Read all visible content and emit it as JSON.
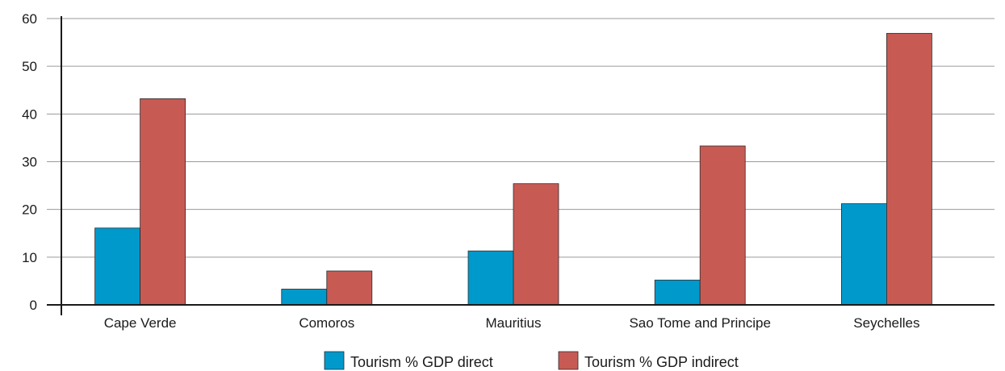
{
  "chart_data": {
    "type": "bar",
    "categories": [
      "Cape Verde",
      "Comoros",
      "Mauritius",
      "Sao Tome and Principe",
      "Seychelles"
    ],
    "series": [
      {
        "name": "Tourism % GDP direct",
        "color": "#0099cc",
        "values": [
          16.1,
          3.3,
          11.3,
          5.2,
          21.2
        ]
      },
      {
        "name": "Tourism % GDP indirect",
        "color": "#c85a54",
        "values": [
          43.2,
          7.1,
          25.4,
          33.3,
          56.9
        ]
      }
    ],
    "ylim": [
      0,
      60
    ],
    "yticks": [
      "0",
      "10",
      "20",
      "30",
      "40",
      "50",
      "60"
    ],
    "grid": true,
    "legend_position": "bottom-center"
  }
}
